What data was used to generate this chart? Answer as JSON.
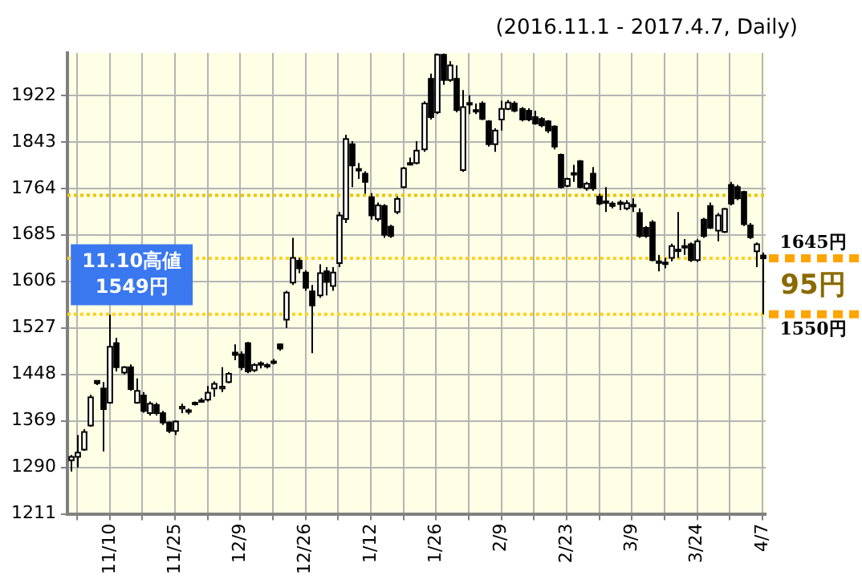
{
  "chart_data": {
    "type": "candlestick",
    "subtitle": "(2016.11.1 - 2017.4.7, Daily)",
    "categories": [
      null,
      null,
      null,
      null,
      null,
      null,
      "11/10",
      null,
      null,
      null,
      null,
      null,
      null,
      null,
      null,
      null,
      "11/25",
      null,
      null,
      null,
      null,
      null,
      null,
      null,
      null,
      null,
      "12/9",
      null,
      null,
      null,
      null,
      null,
      null,
      null,
      null,
      null,
      "12/26",
      null,
      null,
      null,
      null,
      null,
      null,
      null,
      null,
      null,
      "1/12",
      null,
      null,
      null,
      null,
      null,
      null,
      null,
      null,
      null,
      "1/26",
      null,
      null,
      null,
      null,
      null,
      null,
      null,
      null,
      null,
      "2/9",
      null,
      null,
      null,
      null,
      null,
      null,
      null,
      null,
      null,
      "2/23",
      null,
      null,
      null,
      null,
      null,
      null,
      null,
      null,
      null,
      "3/9",
      null,
      null,
      null,
      null,
      null,
      null,
      null,
      null,
      null,
      "3/24",
      null,
      null,
      null,
      null,
      null,
      null,
      null,
      null,
      null,
      "4/7"
    ],
    "ohlc": [
      [
        1302,
        1311,
        1283,
        1308
      ],
      [
        1308,
        1345,
        1290,
        1315
      ],
      [
        1320,
        1355,
        1318,
        1350
      ],
      [
        1361,
        1413,
        1359,
        1409
      ],
      [
        1437,
        1438,
        1430,
        1433
      ],
      [
        1424,
        1435,
        1317,
        1389
      ],
      [
        1400,
        1549,
        1398,
        1495
      ],
      [
        1501,
        1510,
        1453,
        1460
      ],
      [
        1451,
        1462,
        1448,
        1460
      ],
      [
        1460,
        1465,
        1420,
        1423
      ],
      [
        1400,
        1441,
        1398,
        1420
      ],
      [
        1412,
        1418,
        1383,
        1386
      ],
      [
        1382,
        1402,
        1378,
        1398
      ],
      [
        1396,
        1400,
        1378,
        1382
      ],
      [
        1382,
        1386,
        1362,
        1366
      ],
      [
        1366,
        1368,
        1348,
        1352
      ],
      [
        1352,
        1370,
        1345,
        1368
      ],
      [
        1390,
        1398,
        1382,
        1393
      ],
      [
        1385,
        1390,
        1380,
        1387
      ],
      [
        1397,
        1402,
        1395,
        1400
      ],
      [
        1402,
        1408,
        1400,
        1404
      ],
      [
        1405,
        1428,
        1402,
        1417
      ],
      [
        1424,
        1436,
        1410,
        1432
      ],
      [
        1424,
        1460,
        1418,
        1427
      ],
      [
        1435,
        1452,
        1433,
        1449
      ],
      [
        1485,
        1499,
        1472,
        1481
      ],
      [
        1482,
        1487,
        1455,
        1460
      ],
      [
        1501,
        1503,
        1450,
        1453
      ],
      [
        1455,
        1467,
        1452,
        1464
      ],
      [
        1466,
        1470,
        1458,
        1467
      ],
      [
        1463,
        1467,
        1458,
        1464
      ],
      [
        1468,
        1474,
        1465,
        1470
      ],
      [
        1499,
        1500,
        1488,
        1492
      ],
      [
        1541,
        1590,
        1527,
        1587
      ],
      [
        1604,
        1680,
        1600,
        1646
      ],
      [
        1641,
        1646,
        1620,
        1628
      ],
      [
        1621,
        1625,
        1590,
        1595
      ],
      [
        1589,
        1600,
        1484,
        1565
      ],
      [
        1582,
        1635,
        1578,
        1620
      ],
      [
        1623,
        1630,
        1582,
        1605
      ],
      [
        1598,
        1630,
        1590,
        1621
      ],
      [
        1637,
        1724,
        1630,
        1718
      ],
      [
        1712,
        1855,
        1705,
        1848
      ],
      [
        1839,
        1844,
        1766,
        1803
      ],
      [
        1797,
        1807,
        1780,
        1795
      ],
      [
        1789,
        1793,
        1755,
        1775
      ],
      [
        1749,
        1756,
        1711,
        1718
      ],
      [
        1712,
        1740,
        1708,
        1735
      ],
      [
        1734,
        1737,
        1680,
        1685
      ],
      [
        1699,
        1702,
        1680,
        1683
      ],
      [
        1724,
        1750,
        1720,
        1746
      ],
      [
        1766,
        1800,
        1764,
        1798
      ],
      [
        1806,
        1816,
        1803,
        1807
      ],
      [
        1807,
        1844,
        1805,
        1828
      ],
      [
        1830,
        1912,
        1826,
        1908
      ],
      [
        1950,
        1959,
        1881,
        1885
      ],
      [
        1893,
        1993,
        1890,
        1991
      ],
      [
        1991,
        1993,
        1940,
        1948
      ],
      [
        1948,
        1980,
        1945,
        1973
      ],
      [
        1950,
        1973,
        1893,
        1897
      ],
      [
        1795,
        1931,
        1792,
        1902
      ],
      [
        1909,
        1922,
        1890,
        1908
      ],
      [
        1897,
        1908,
        1890,
        1896
      ],
      [
        1908,
        1912,
        1880,
        1882
      ],
      [
        1878,
        1880,
        1835,
        1839
      ],
      [
        1839,
        1866,
        1826,
        1862
      ],
      [
        1881,
        1913,
        1862,
        1899
      ],
      [
        1899,
        1914,
        1897,
        1910
      ],
      [
        1908,
        1912,
        1893,
        1896
      ],
      [
        1899,
        1902,
        1878,
        1881
      ],
      [
        1896,
        1900,
        1878,
        1881
      ],
      [
        1885,
        1896,
        1872,
        1874
      ],
      [
        1882,
        1885,
        1868,
        1871
      ],
      [
        1878,
        1880,
        1858,
        1862
      ],
      [
        1869,
        1871,
        1830,
        1835
      ],
      [
        1821,
        1823,
        1764,
        1766
      ],
      [
        1768,
        1782,
        1766,
        1780
      ],
      [
        1790,
        1804,
        1775,
        1789
      ],
      [
        1810,
        1812,
        1764,
        1766
      ],
      [
        1764,
        1775,
        1760,
        1772
      ],
      [
        1789,
        1800,
        1760,
        1764
      ],
      [
        1750,
        1755,
        1735,
        1738
      ],
      [
        1742,
        1766,
        1724,
        1740
      ],
      [
        1738,
        1742,
        1730,
        1734
      ],
      [
        1740,
        1744,
        1727,
        1738
      ],
      [
        1730,
        1744,
        1727,
        1739
      ],
      [
        1736,
        1747,
        1724,
        1735
      ],
      [
        1722,
        1730,
        1680,
        1683
      ],
      [
        1697,
        1700,
        1680,
        1683
      ],
      [
        1706,
        1710,
        1640,
        1642
      ],
      [
        1640,
        1651,
        1623,
        1638
      ],
      [
        1638,
        1646,
        1628,
        1637
      ],
      [
        1646,
        1670,
        1640,
        1666
      ],
      [
        1660,
        1724,
        1646,
        1658
      ],
      [
        1664,
        1678,
        1651,
        1666
      ],
      [
        1669,
        1672,
        1639,
        1642
      ],
      [
        1642,
        1678,
        1639,
        1674
      ],
      [
        1711,
        1714,
        1680,
        1683
      ],
      [
        1734,
        1740,
        1695,
        1697
      ],
      [
        1692,
        1722,
        1674,
        1718
      ],
      [
        1690,
        1731,
        1688,
        1729
      ],
      [
        1770,
        1775,
        1735,
        1738
      ],
      [
        1766,
        1770,
        1744,
        1747
      ],
      [
        1758,
        1760,
        1700,
        1703
      ],
      [
        1701,
        1705,
        1678,
        1681
      ],
      [
        1657,
        1672,
        1630,
        1669
      ],
      [
        1650,
        1655,
        1550,
        1645
      ]
    ],
    "ylim": [
      1211,
      1994
    ],
    "yticks": [
      1211,
      1290,
      1369,
      1448,
      1527,
      1606,
      1685,
      1764,
      1843,
      1922
    ],
    "grid": true,
    "legend": false,
    "ref_lines": [
      {
        "axis": "y",
        "value": 1645,
        "label": "1645円",
        "color": "#ffd21e",
        "line_style": "dotted"
      },
      {
        "axis": "y",
        "value": 1550,
        "label": "1550円",
        "color": "#ffd21e",
        "line_style": "dotted"
      },
      {
        "axis": "y",
        "value": 1752,
        "color": "#e8c800",
        "line_style": "dotted"
      }
    ],
    "annotations": [
      {
        "text": "11.10高値\n1549円",
        "x": "11/10",
        "y": 1549
      },
      "95円"
    ]
  }
}
